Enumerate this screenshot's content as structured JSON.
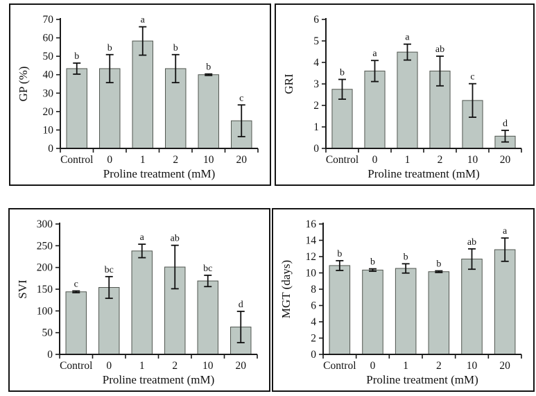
{
  "figure": {
    "background": "#ffffff",
    "panel_border_color": "#141414",
    "bar_fill": "#bdc8c3",
    "bar_stroke": "#50554f",
    "axis_color": "#1a1a1a",
    "error_bar_color": "#111111",
    "text_color": "#111111",
    "xlabel": "Proline treatment (mM)",
    "categories": [
      "Control",
      "0",
      "1",
      "2",
      "10",
      "20"
    ]
  },
  "chart_data": [
    {
      "type": "bar",
      "panel": "top-left",
      "ylabel": "GP (%)",
      "xlabel": "Proline treatment (mM)",
      "categories": [
        "Control",
        "0",
        "1",
        "2",
        "10",
        "20"
      ],
      "values": [
        43.3,
        43.3,
        58.3,
        43.3,
        40.0,
        15.0
      ],
      "errors": [
        3.0,
        7.6,
        7.7,
        7.6,
        0.4,
        8.6
      ],
      "sig_letters": [
        "b",
        "b",
        "a",
        "b",
        "b",
        "c"
      ],
      "ylim": [
        0,
        70
      ],
      "ytick_step": 10,
      "grid": false,
      "legend": "none"
    },
    {
      "type": "bar",
      "panel": "top-right",
      "ylabel": "GRI",
      "xlabel": "Proline treatment (mM)",
      "categories": [
        "Control",
        "0",
        "1",
        "2",
        "10",
        "20"
      ],
      "values": [
        2.75,
        3.6,
        4.48,
        3.6,
        2.23,
        0.57
      ],
      "errors": [
        0.46,
        0.49,
        0.37,
        0.69,
        0.78,
        0.27
      ],
      "sig_letters": [
        "b",
        "a",
        "a",
        "ab",
        "c",
        "d"
      ],
      "ylim": [
        0,
        6
      ],
      "ytick_step": 1,
      "grid": false,
      "legend": "none"
    },
    {
      "type": "bar",
      "panel": "bottom-left",
      "ylabel": "SVI",
      "xlabel": "Proline treatment (mM)",
      "categories": [
        "Control",
        "0",
        "1",
        "2",
        "10",
        "20"
      ],
      "values": [
        144,
        154,
        238,
        201,
        169,
        63
      ],
      "errors": [
        2,
        25,
        15.5,
        50,
        13,
        36
      ],
      "sig_letters": [
        "c",
        "bc",
        "a",
        "ab",
        "bc",
        "d"
      ],
      "ylim": [
        0,
        300
      ],
      "ytick_step": 50,
      "grid": false,
      "legend": "none"
    },
    {
      "type": "bar",
      "panel": "bottom-right",
      "ylabel": "MGT (days)",
      "xlabel": "Proline treatment (mM)",
      "categories": [
        "Control",
        "0",
        "1",
        "2",
        "10",
        "20"
      ],
      "values": [
        10.9,
        10.35,
        10.55,
        10.15,
        11.7,
        12.85
      ],
      "errors": [
        0.6,
        0.15,
        0.57,
        0.1,
        1.25,
        1.43
      ],
      "sig_letters": [
        "b",
        "b",
        "b",
        "b",
        "ab",
        "a"
      ],
      "ylim": [
        0,
        16
      ],
      "ytick_step": 2,
      "grid": false,
      "legend": "none"
    }
  ]
}
